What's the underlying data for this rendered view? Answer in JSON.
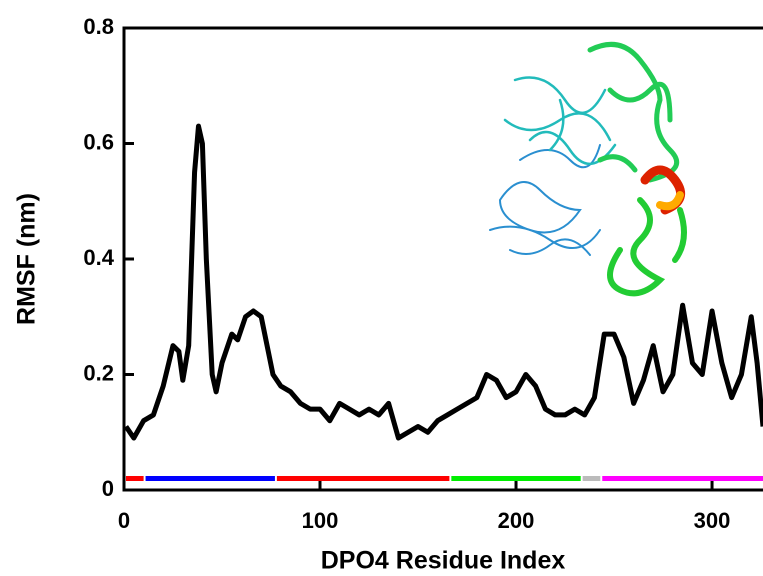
{
  "chart_data": {
    "type": "line",
    "xlabel": "DPO4 Residue Index",
    "ylabel": "RMSF (nm)",
    "xlim": [
      0,
      326
    ],
    "ylim": [
      0,
      0.8
    ],
    "xticks": [
      0,
      100,
      200,
      300
    ],
    "yticks": [
      0,
      0.2,
      0.4,
      0.6,
      0.8
    ],
    "series": [
      {
        "color": "#000000",
        "x": [
          1,
          5,
          10,
          15,
          20,
          25,
          28,
          30,
          33,
          36,
          38,
          40,
          42,
          45,
          47,
          50,
          55,
          58,
          62,
          66,
          70,
          73,
          76,
          80,
          85,
          90,
          95,
          100,
          105,
          110,
          115,
          120,
          125,
          130,
          135,
          140,
          145,
          150,
          155,
          160,
          165,
          170,
          175,
          180,
          185,
          190,
          195,
          200,
          205,
          210,
          215,
          220,
          225,
          230,
          235,
          240,
          245,
          250,
          255,
          260,
          265,
          270,
          275,
          280,
          285,
          290,
          295,
          300,
          305,
          310,
          315,
          320,
          323,
          326
        ],
        "values": [
          0.11,
          0.09,
          0.12,
          0.13,
          0.18,
          0.25,
          0.24,
          0.19,
          0.25,
          0.55,
          0.63,
          0.6,
          0.4,
          0.2,
          0.17,
          0.22,
          0.27,
          0.26,
          0.3,
          0.31,
          0.3,
          0.25,
          0.2,
          0.18,
          0.17,
          0.15,
          0.14,
          0.14,
          0.12,
          0.15,
          0.14,
          0.13,
          0.14,
          0.13,
          0.15,
          0.09,
          0.1,
          0.11,
          0.1,
          0.12,
          0.13,
          0.14,
          0.15,
          0.16,
          0.2,
          0.19,
          0.16,
          0.17,
          0.2,
          0.18,
          0.14,
          0.13,
          0.13,
          0.14,
          0.13,
          0.16,
          0.27,
          0.27,
          0.23,
          0.15,
          0.19,
          0.25,
          0.17,
          0.2,
          0.32,
          0.22,
          0.2,
          0.31,
          0.22,
          0.16,
          0.2,
          0.3,
          0.22,
          0.11
        ]
      }
    ],
    "domains": [
      {
        "start": 1,
        "end": 10,
        "y": 0.02,
        "color": "#ff0000"
      },
      {
        "start": 11,
        "end": 77,
        "y": 0.02,
        "color": "#0000ff"
      },
      {
        "start": 78,
        "end": 166,
        "y": 0.02,
        "color": "#ff0000"
      },
      {
        "start": 167,
        "end": 233,
        "y": 0.02,
        "color": "#00ee00"
      },
      {
        "start": 234,
        "end": 243,
        "y": 0.02,
        "color": "#bbbbbb"
      },
      {
        "start": 244,
        "end": 326,
        "y": 0.02,
        "color": "#ff00ff"
      }
    ]
  }
}
